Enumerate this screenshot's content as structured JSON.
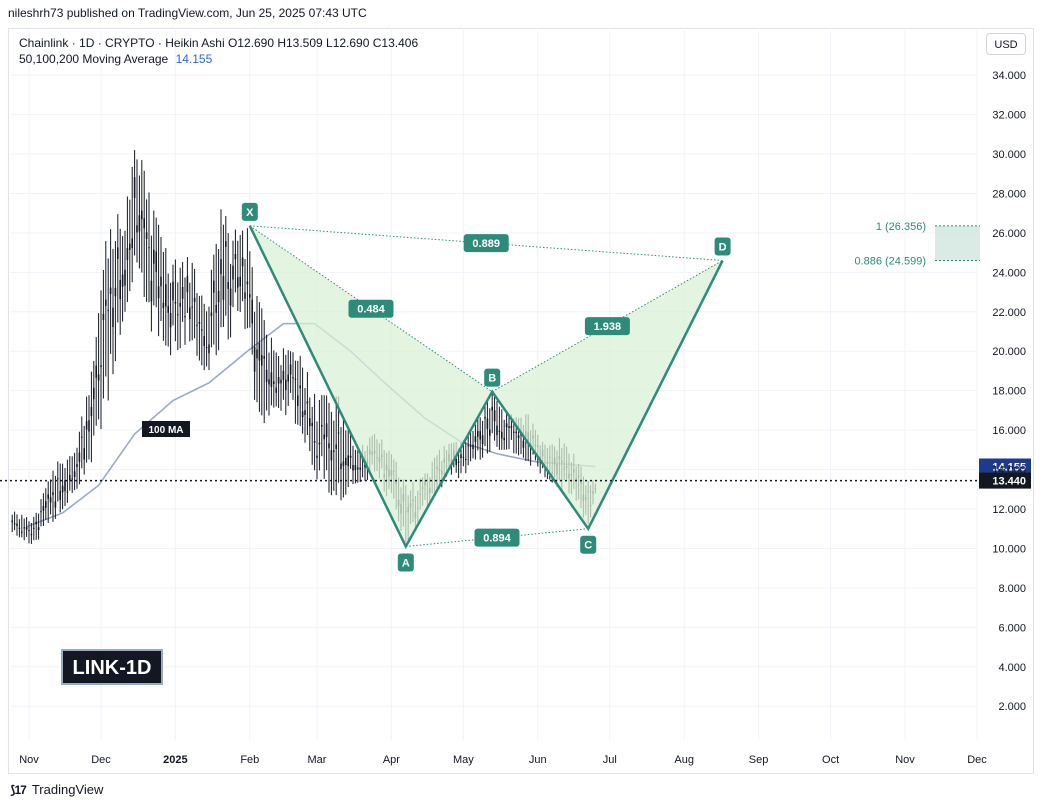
{
  "header": {
    "publisher_line": "nileshrh73 published on TradingView.com, Jun 25, 2025 07:43 UTC"
  },
  "legend": {
    "line1": "Chainlink · 1D · CRYPTO · Heikin Ashi  O12.690  H13.509  L12.690  C13.406",
    "ma_label": "50,100,200 Moving Average",
    "ma_value": "14.155"
  },
  "currency": "USD",
  "footer": {
    "brand": "TradingView"
  },
  "symbol_badge": "LINK-1D",
  "colors": {
    "pattern": "#2e8b7a",
    "fill": "#d9f0d6",
    "ma": "#9aa9c8",
    "candle": "#131722",
    "price_badge": "#131722",
    "ma_badge": "#1e3a8a"
  },
  "chart_data": {
    "type": "candlestick",
    "price_axis": {
      "ticks": [
        "34.000",
        "32.000",
        "30.000",
        "28.000",
        "26.000",
        "24.000",
        "22.000",
        "20.000",
        "18.000",
        "16.000",
        "14.000",
        "12.000",
        "10.000",
        "8.000",
        "6.000",
        "4.000",
        "2.000"
      ],
      "tick_values": [
        34,
        32,
        30,
        28,
        26,
        24,
        22,
        20,
        18,
        16,
        14,
        12,
        10,
        8,
        6,
        4,
        2
      ],
      "ylim": [
        0,
        36
      ]
    },
    "time_axis": {
      "labels": [
        "Nov",
        "Dec",
        "2025",
        "Feb",
        "Mar",
        "Apr",
        "May",
        "Jun",
        "Jul",
        "Aug",
        "Sep",
        "Oct",
        "Nov",
        "Dec"
      ],
      "dates": [
        "2024-11-01",
        "2024-12-01",
        "2025-01-01",
        "2025-02-01",
        "2025-03-01",
        "2025-04-01",
        "2025-05-01",
        "2025-06-01",
        "2025-07-01",
        "2025-08-01",
        "2025-09-01",
        "2025-10-01",
        "2025-11-01",
        "2025-12-01"
      ],
      "bold": [
        "2025"
      ]
    },
    "current_price": "13.440",
    "ma_value": "14.155",
    "ma_label": "100 MA",
    "price_envelope": [
      {
        "date": "2024-10-25",
        "low": 10.8,
        "high": 11.9
      },
      {
        "date": "2024-11-03",
        "low": 10.1,
        "high": 11.6
      },
      {
        "date": "2024-11-12",
        "low": 11.5,
        "high": 14.3
      },
      {
        "date": "2024-11-20",
        "low": 12.8,
        "high": 15.2
      },
      {
        "date": "2024-11-28",
        "low": 14.6,
        "high": 19.5
      },
      {
        "date": "2024-12-04",
        "low": 17.5,
        "high": 26.8
      },
      {
        "date": "2024-12-10",
        "low": 21.5,
        "high": 27.2
      },
      {
        "date": "2024-12-16",
        "low": 24.5,
        "high": 30.8
      },
      {
        "date": "2024-12-22",
        "low": 21.0,
        "high": 27.5
      },
      {
        "date": "2024-12-30",
        "low": 19.8,
        "high": 24.6
      },
      {
        "date": "2025-01-07",
        "low": 20.5,
        "high": 24.8
      },
      {
        "date": "2025-01-14",
        "low": 18.8,
        "high": 22.6
      },
      {
        "date": "2025-01-20",
        "low": 20.3,
        "high": 27.2
      },
      {
        "date": "2025-01-27",
        "low": 21.0,
        "high": 26.0
      },
      {
        "date": "2025-02-01",
        "low": 21.2,
        "high": 26.3
      },
      {
        "date": "2025-02-04",
        "low": 15.7,
        "high": 22.8
      },
      {
        "date": "2025-02-12",
        "low": 17.2,
        "high": 20.3
      },
      {
        "date": "2025-02-22",
        "low": 16.1,
        "high": 19.8
      },
      {
        "date": "2025-03-01",
        "low": 13.5,
        "high": 17.8
      },
      {
        "date": "2025-03-10",
        "low": 12.3,
        "high": 17.7
      },
      {
        "date": "2025-03-17",
        "low": 13.3,
        "high": 15.1
      },
      {
        "date": "2025-03-26",
        "low": 13.6,
        "high": 15.9
      },
      {
        "date": "2025-04-03",
        "low": 11.7,
        "high": 14.4
      },
      {
        "date": "2025-04-07",
        "low": 10.1,
        "high": 13.2
      },
      {
        "date": "2025-04-14",
        "low": 11.8,
        "high": 13.6
      },
      {
        "date": "2025-04-22",
        "low": 13.1,
        "high": 15.2
      },
      {
        "date": "2025-05-01",
        "low": 13.7,
        "high": 15.5
      },
      {
        "date": "2025-05-08",
        "low": 14.5,
        "high": 16.9
      },
      {
        "date": "2025-05-13",
        "low": 15.0,
        "high": 18.0
      },
      {
        "date": "2025-05-20",
        "low": 15.0,
        "high": 16.8
      },
      {
        "date": "2025-05-28",
        "low": 14.3,
        "high": 16.8
      },
      {
        "date": "2025-06-03",
        "low": 13.7,
        "high": 15.4
      },
      {
        "date": "2025-06-10",
        "low": 13.0,
        "high": 15.6
      },
      {
        "date": "2025-06-16",
        "low": 12.7,
        "high": 14.8
      },
      {
        "date": "2025-06-22",
        "low": 11.0,
        "high": 13.5
      },
      {
        "date": "2025-06-25",
        "low": 12.7,
        "high": 13.5
      }
    ],
    "moving_average": [
      {
        "date": "2024-10-31",
        "value": 11.1
      },
      {
        "date": "2024-11-15",
        "value": 11.8
      },
      {
        "date": "2024-11-30",
        "value": 13.2
      },
      {
        "date": "2024-12-15",
        "value": 15.8
      },
      {
        "date": "2024-12-31",
        "value": 17.5
      },
      {
        "date": "2025-01-15",
        "value": 18.4
      },
      {
        "date": "2025-01-31",
        "value": 20.0
      },
      {
        "date": "2025-02-15",
        "value": 21.4
      },
      {
        "date": "2025-02-28",
        "value": 21.4
      },
      {
        "date": "2025-03-15",
        "value": 20.0
      },
      {
        "date": "2025-03-31",
        "value": 18.2
      },
      {
        "date": "2025-04-15",
        "value": 16.6
      },
      {
        "date": "2025-04-30",
        "value": 15.4
      },
      {
        "date": "2025-05-15",
        "value": 14.8
      },
      {
        "date": "2025-05-31",
        "value": 14.4
      },
      {
        "date": "2025-06-25",
        "value": 14.155
      }
    ],
    "harmonic_pattern": {
      "points": [
        {
          "label": "X",
          "date": "2025-02-01",
          "price": 26.36
        },
        {
          "label": "A",
          "date": "2025-04-07",
          "price": 10.1
        },
        {
          "label": "B",
          "date": "2025-05-13",
          "price": 17.95
        },
        {
          "label": "C",
          "date": "2025-06-22",
          "price": 11.0
        },
        {
          "label": "D",
          "date": "2025-08-17",
          "price": 24.6
        }
      ],
      "ratios": [
        {
          "label": "0.484",
          "from": "X",
          "to": "B"
        },
        {
          "label": "0.894",
          "from": "A",
          "to": "C"
        },
        {
          "label": "1.938",
          "from": "B",
          "to": "D"
        },
        {
          "label": "0.889",
          "from": "X",
          "to": "D"
        }
      ]
    },
    "fib_levels": [
      {
        "label": "1 (26.356)",
        "value": 26.356
      },
      {
        "label": "0.886 (24.599)",
        "value": 24.599
      }
    ]
  }
}
